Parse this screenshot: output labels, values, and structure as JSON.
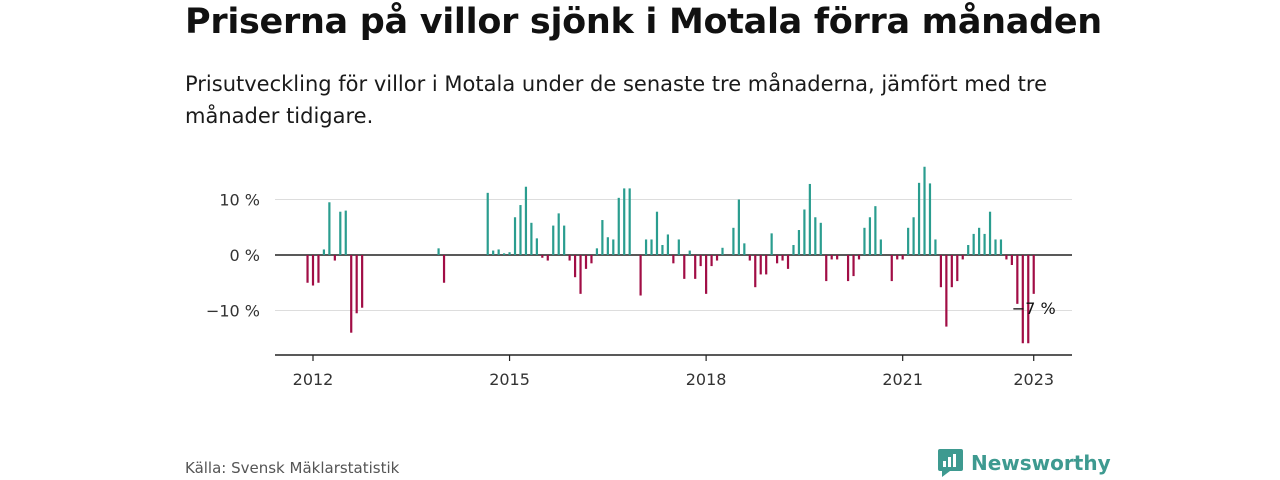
{
  "title": "Priserna på villor sjönk i Motala förra månaden",
  "subtitle": "Prisutveckling för villor i Motala under de senaste tre månaderna, jämfört med tre månader tidigare.",
  "source": "Källa: Svensk Mäklarstatistik",
  "brand": {
    "name": "Newsworthy",
    "icon": "newsworthy-logo-icon"
  },
  "colors": {
    "positive": "#2a9d8f",
    "negative": "#a10d45",
    "grid": "#dddddd",
    "axis": "#222222"
  },
  "chart_data": {
    "type": "bar",
    "y_unit": "%",
    "ylim": [
      -18,
      17
    ],
    "y_ticks": [
      10,
      0,
      -10
    ],
    "y_tick_labels": [
      "10 %",
      "0 %",
      "−10 %"
    ],
    "x_ticks": [
      "2012",
      "2015",
      "2018",
      "2021",
      "2023"
    ],
    "grid": true,
    "highlight": {
      "date": "2023-01",
      "label": "−7 %"
    },
    "series": [
      {
        "values": [
          [
            "2011-12",
            -5
          ],
          [
            "2012-01",
            -5.5
          ],
          [
            "2012-02",
            -5
          ],
          [
            "2012-03",
            1
          ],
          [
            "2012-04",
            9.5
          ],
          [
            "2012-05",
            -1
          ],
          [
            "2012-06",
            7.8
          ],
          [
            "2012-07",
            8
          ],
          [
            "2012-08",
            -14
          ],
          [
            "2012-09",
            -10.5
          ],
          [
            "2012-10",
            -9.5
          ],
          [
            "2013-12",
            1.2
          ],
          [
            "2014-01",
            -5
          ],
          [
            "2014-09",
            11.2
          ],
          [
            "2014-10",
            0.8
          ],
          [
            "2014-11",
            1
          ],
          [
            "2014-12",
            0.3
          ],
          [
            "2015-01",
            0.5
          ],
          [
            "2015-02",
            6.8
          ],
          [
            "2015-03",
            9
          ],
          [
            "2015-04",
            12.3
          ],
          [
            "2015-05",
            5.8
          ],
          [
            "2015-06",
            3
          ],
          [
            "2015-07",
            -0.5
          ],
          [
            "2015-08",
            -1
          ],
          [
            "2015-09",
            5.3
          ],
          [
            "2015-10",
            7.5
          ],
          [
            "2015-11",
            5.3
          ],
          [
            "2015-12",
            -1
          ],
          [
            "2016-01",
            -4
          ],
          [
            "2016-02",
            -7
          ],
          [
            "2016-03",
            -2.5
          ],
          [
            "2016-04",
            -1.5
          ],
          [
            "2016-05",
            1.2
          ],
          [
            "2016-06",
            6.3
          ],
          [
            "2016-07",
            3.2
          ],
          [
            "2016-08",
            2.8
          ],
          [
            "2016-09",
            10.3
          ],
          [
            "2016-10",
            12
          ],
          [
            "2016-11",
            12
          ],
          [
            "2017-01",
            -7.3
          ],
          [
            "2017-02",
            2.8
          ],
          [
            "2017-03",
            2.8
          ],
          [
            "2017-04",
            7.8
          ],
          [
            "2017-05",
            1.8
          ],
          [
            "2017-06",
            3.7
          ],
          [
            "2017-07",
            -1.5
          ],
          [
            "2017-08",
            2.8
          ],
          [
            "2017-09",
            -4.3
          ],
          [
            "2017-10",
            0.8
          ],
          [
            "2017-11",
            -4.3
          ],
          [
            "2017-12",
            -2
          ],
          [
            "2018-01",
            -7
          ],
          [
            "2018-02",
            -2
          ],
          [
            "2018-03",
            -1
          ],
          [
            "2018-04",
            1.3
          ],
          [
            "2018-06",
            4.9
          ],
          [
            "2018-07",
            10
          ],
          [
            "2018-08",
            2.1
          ],
          [
            "2018-09",
            -1
          ],
          [
            "2018-10",
            -5.8
          ],
          [
            "2018-11",
            -3.5
          ],
          [
            "2018-12",
            -3.5
          ],
          [
            "2019-01",
            3.9
          ],
          [
            "2019-02",
            -1.5
          ],
          [
            "2019-03",
            -1
          ],
          [
            "2019-04",
            -2.5
          ],
          [
            "2019-05",
            1.8
          ],
          [
            "2019-06",
            4.5
          ],
          [
            "2019-07",
            8.2
          ],
          [
            "2019-08",
            12.8
          ],
          [
            "2019-09",
            6.8
          ],
          [
            "2019-10",
            5.8
          ],
          [
            "2019-11",
            -4.7
          ],
          [
            "2019-12",
            -0.8
          ],
          [
            "2020-01",
            -0.8
          ],
          [
            "2020-03",
            -4.7
          ],
          [
            "2020-04",
            -3.8
          ],
          [
            "2020-05",
            -0.8
          ],
          [
            "2020-06",
            4.9
          ],
          [
            "2020-07",
            6.8
          ],
          [
            "2020-08",
            8.8
          ],
          [
            "2020-09",
            2.8
          ],
          [
            "2020-11",
            -4.7
          ],
          [
            "2020-12",
            -0.8
          ],
          [
            "2021-01",
            -0.8
          ],
          [
            "2021-02",
            4.9
          ],
          [
            "2021-03",
            6.8
          ],
          [
            "2021-04",
            13
          ],
          [
            "2021-05",
            15.9
          ],
          [
            "2021-06",
            12.9
          ],
          [
            "2021-07",
            2.8
          ],
          [
            "2021-08",
            -5.8
          ],
          [
            "2021-09",
            -12.9
          ],
          [
            "2021-10",
            -5.8
          ],
          [
            "2021-11",
            -4.7
          ],
          [
            "2021-12",
            -0.8
          ],
          [
            "2022-01",
            1.8
          ],
          [
            "2022-02",
            3.8
          ],
          [
            "2022-03",
            4.9
          ],
          [
            "2022-04",
            3.8
          ],
          [
            "2022-05",
            7.8
          ],
          [
            "2022-06",
            2.8
          ],
          [
            "2022-07",
            2.8
          ],
          [
            "2022-08",
            -0.8
          ],
          [
            "2022-09",
            -1.8
          ],
          [
            "2022-10",
            -8.8
          ],
          [
            "2022-11",
            -15.9
          ],
          [
            "2022-12",
            -15.9
          ],
          [
            "2023-01",
            -7
          ]
        ]
      }
    ]
  }
}
